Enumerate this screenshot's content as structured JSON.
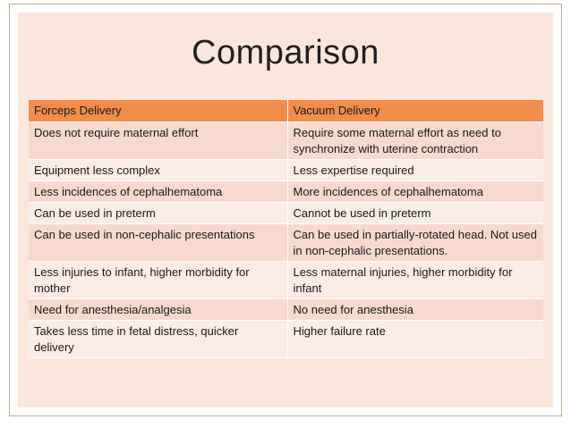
{
  "slide": {
    "title": "Comparison",
    "headers": [
      "Forceps Delivery",
      "Vacuum Delivery"
    ],
    "rows": [
      [
        "Does not require maternal effort",
        "Require some maternal effort as need to synchronize with uterine contraction"
      ],
      [
        "Equipment less complex",
        "Less expertise required"
      ],
      [
        "Less incidences of cephalhematoma",
        "More incidences of cephalhematoma"
      ],
      [
        "Can be used in preterm",
        "Cannot be used in preterm"
      ],
      [
        "Can be used in non-cephalic presentations",
        "Can be used in partially-rotated head. Not used in non-cephalic presentations."
      ],
      [
        "Less injuries to infant, higher morbidity for mother",
        "Less maternal injuries, higher morbidity for infant"
      ],
      [
        "Need for anesthesia/analgesia",
        "No need for anesthesia"
      ],
      [
        "Takes less time in fetal distress, quicker delivery",
        "Higher failure rate"
      ]
    ]
  }
}
